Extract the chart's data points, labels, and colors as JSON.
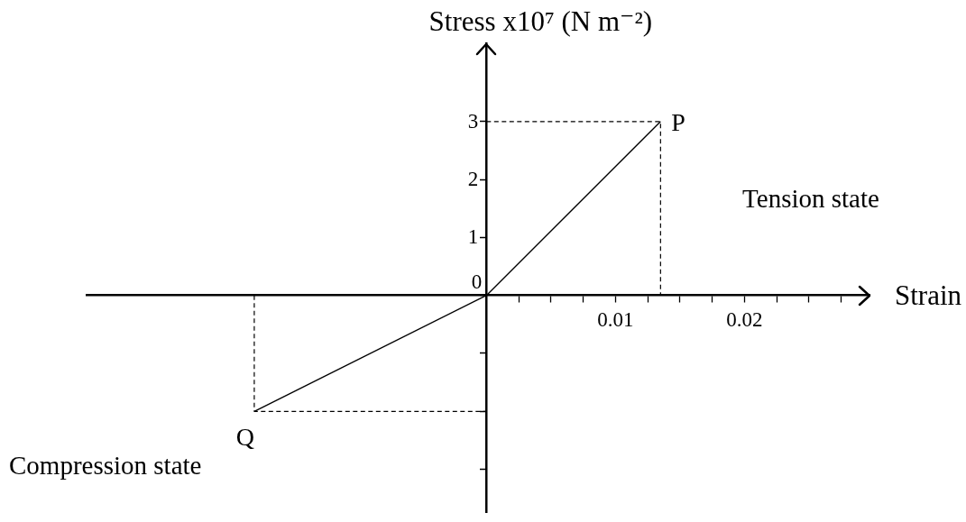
{
  "chart_data": {
    "type": "line",
    "xlabel": "Strain",
    "ylabel": "Stress x10⁷ (N m⁻²)",
    "series": [
      {
        "color": "#000000",
        "x": [
          -0.018,
          0,
          0.0135
        ],
        "values": [
          -2,
          0,
          3
        ],
        "line_style": "solid"
      },
      {
        "color": "#000000",
        "x": [
          0,
          0.0135,
          0.0135
        ],
        "values": [
          3,
          3,
          0
        ],
        "line_style": "dashed"
      },
      {
        "color": "#000000",
        "x": [
          -0.018,
          -0.018,
          0
        ],
        "values": [
          0,
          -2,
          -2
        ],
        "line_style": "dashed"
      }
    ],
    "xlim": [
      -0.031,
      0.0297
    ],
    "xticks": [
      {
        "value": 0.0025,
        "label": null
      },
      {
        "value": 0.005,
        "label": null
      },
      {
        "value": 0.0075,
        "label": null
      },
      0.01,
      {
        "value": 0.0125,
        "label": null
      },
      {
        "value": 0.015,
        "label": null
      },
      {
        "value": 0.0175,
        "label": null
      },
      0.02,
      {
        "value": 0.0225,
        "label": null
      },
      {
        "value": 0.025,
        "label": null
      },
      {
        "value": 0.0275,
        "label": null
      }
    ],
    "ylim": [
      -3.75,
      4.35
    ],
    "yticks": [
      {
        "value": -3,
        "label": null
      },
      {
        "value": -2,
        "label": null
      },
      {
        "value": -1,
        "label": null
      },
      0,
      1,
      2,
      3
    ],
    "marker": "none",
    "legend": false,
    "annotations": [
      {
        "text": "P",
        "x": 0.0135,
        "y": 3
      },
      {
        "text": "Q",
        "x": -0.018,
        "y": -2
      },
      "Tension state",
      "Compression state"
    ]
  }
}
